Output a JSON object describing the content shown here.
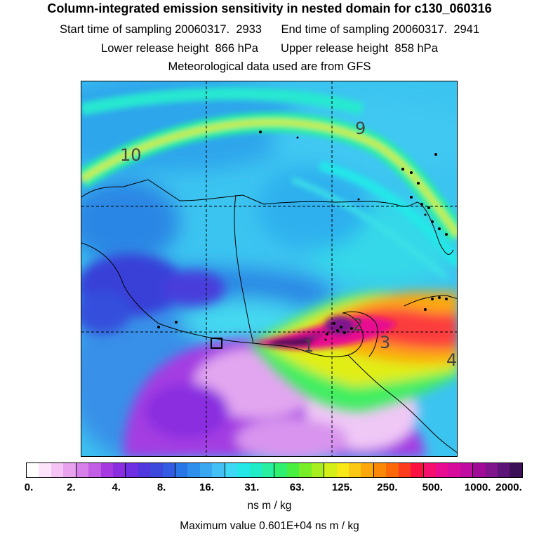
{
  "header": {
    "title": "Column-integrated emission sensitivity in nested domain for c130_060316",
    "line1_left": "Start time of sampling 20060317.  2933",
    "line1_right": "End time of sampling 20060317.  2941",
    "line2_left": "Lower release height  866 hPa",
    "line2_right": "Upper release height  858 hPa",
    "line3": "Meteorological data used are from GFS"
  },
  "map": {
    "trajectory_labels": [
      "10",
      "9",
      "4",
      "3",
      "2",
      "1"
    ]
  },
  "colorbar": {
    "tick_labels": [
      "0.",
      "2.",
      "4.",
      "8.",
      "16.",
      "31.",
      "63.",
      "125.",
      "250.",
      "500.",
      "1000.",
      "2000."
    ],
    "colors": [
      "#ffffff",
      "#fde4fb",
      "#f6c4f4",
      "#e9a2ee",
      "#d77fea",
      "#c25ee6",
      "#a63ae0",
      "#8a2ee0",
      "#6e30e2",
      "#5138de",
      "#3d48dc",
      "#335ce2",
      "#2a76e6",
      "#2e90ec",
      "#3aa8f0",
      "#44c0f4",
      "#3fd8f4",
      "#24e8e8",
      "#20ecc8",
      "#28f0a0",
      "#30f070",
      "#48ee40",
      "#78ee28",
      "#a8ee20",
      "#d4ee18",
      "#f8e818",
      "#fcc814",
      "#fca80c",
      "#fc8808",
      "#fc6808",
      "#fc3c1c",
      "#fc1040",
      "#f4106c",
      "#e80c90",
      "#d80c9c",
      "#c00ca0",
      "#a00c98",
      "#80148c",
      "#5c1478",
      "#3c1056"
    ],
    "units": "ns m / kg",
    "max_value": "Maximum value  0.601E+04 ns m / kg"
  }
}
